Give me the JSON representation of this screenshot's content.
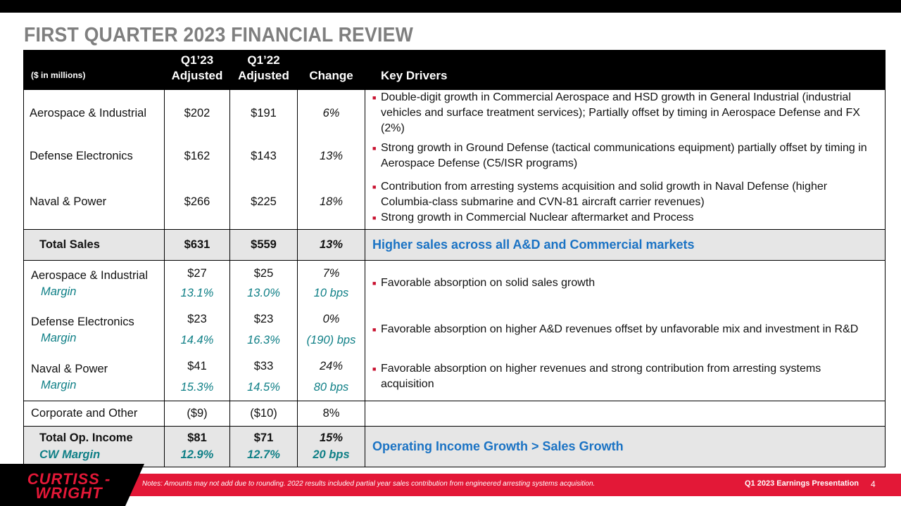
{
  "title": "FIRST QUARTER 2023 FINANCIAL REVIEW",
  "table": {
    "headers": {
      "units": "($ in millions)",
      "q123_line1": "Q1’23",
      "q123_line2": "Adjusted",
      "q122_line1": "Q1’22",
      "q122_line2": "Adjusted",
      "change": "Change",
      "key_drivers": "Key Drivers"
    },
    "sales_rows": [
      {
        "segment": "Aerospace & Industrial",
        "q123": "$202",
        "q122": "$191",
        "change": "6%",
        "drivers": [
          "Double-digit growth in Commercial Aerospace and HSD growth in General Industrial (industrial vehicles and surface treatment services); Partially offset by timing in Aerospace Defense and FX (2%)"
        ]
      },
      {
        "segment": "Defense Electronics",
        "q123": "$162",
        "q122": "$143",
        "change": "13%",
        "drivers": [
          "Strong growth in Ground Defense (tactical communications equipment) partially offset by timing in Aerospace Defense (C5/ISR programs)"
        ]
      },
      {
        "segment": "Naval & Power",
        "q123": "$266",
        "q122": "$225",
        "change": "18%",
        "drivers": [
          "Contribution from arresting systems acquisition and solid growth in Naval Defense (higher Columbia-class submarine and CVN-81 aircraft carrier revenues)",
          "Strong growth in Commercial Nuclear aftermarket and Process"
        ]
      }
    ],
    "total_sales": {
      "label": "Total Sales",
      "q123": "$631",
      "q122": "$559",
      "change": "13%",
      "driver": "Higher sales across all A&D  and Commercial markets"
    },
    "op_rows": [
      {
        "segment": "Aerospace & Industrial",
        "margin_label": "Margin",
        "q123": "$27",
        "q123_margin": "13.1%",
        "q122": "$25",
        "q122_margin": "13.0%",
        "change": "7%",
        "change_margin": "10 bps",
        "driver": "Favorable absorption on solid sales growth"
      },
      {
        "segment": "Defense Electronics",
        "margin_label": "Margin",
        "q123": "$23",
        "q123_margin": "14.4%",
        "q122": "$23",
        "q122_margin": "16.3%",
        "change": "0%",
        "change_margin": "(190) bps",
        "driver": "Favorable absorption on higher A&D revenues offset by unfavorable mix and investment in R&D"
      },
      {
        "segment": "Naval & Power",
        "margin_label": "Margin",
        "q123": "$41",
        "q123_margin": "15.3%",
        "q122": "$33",
        "q122_margin": "14.5%",
        "change": "24%",
        "change_margin": "80 bps",
        "driver": "Favorable absorption on higher revenues and strong contribution from arresting systems acquisition"
      }
    ],
    "corporate": {
      "label": "Corporate and Other",
      "q123": "($9)",
      "q122": "($10)",
      "change": "8%"
    },
    "total_op": {
      "label": "Total Op. Income",
      "margin_label": "CW Margin",
      "q123": "$81",
      "q123_margin": "12.9%",
      "q122": "$71",
      "q122_margin": "12.7%",
      "change": "15%",
      "change_margin": "20 bps",
      "driver": "Operating Income Growth > Sales Growth"
    }
  },
  "footer": {
    "logo_line1": "CURTISS -",
    "logo_line2": "WRIGHT",
    "note": "Notes: Amounts may not add due to rounding. 2022 results included partial year sales contribution from engineered arresting systems acquisition.",
    "presentation": "Q1 2023 Earnings Presentation",
    "page_number": "4"
  },
  "colors": {
    "accent_red": "#e31837",
    "blue": "#1b73c4",
    "teal": "#0e7f86",
    "title_gray": "#7f7f7f"
  }
}
